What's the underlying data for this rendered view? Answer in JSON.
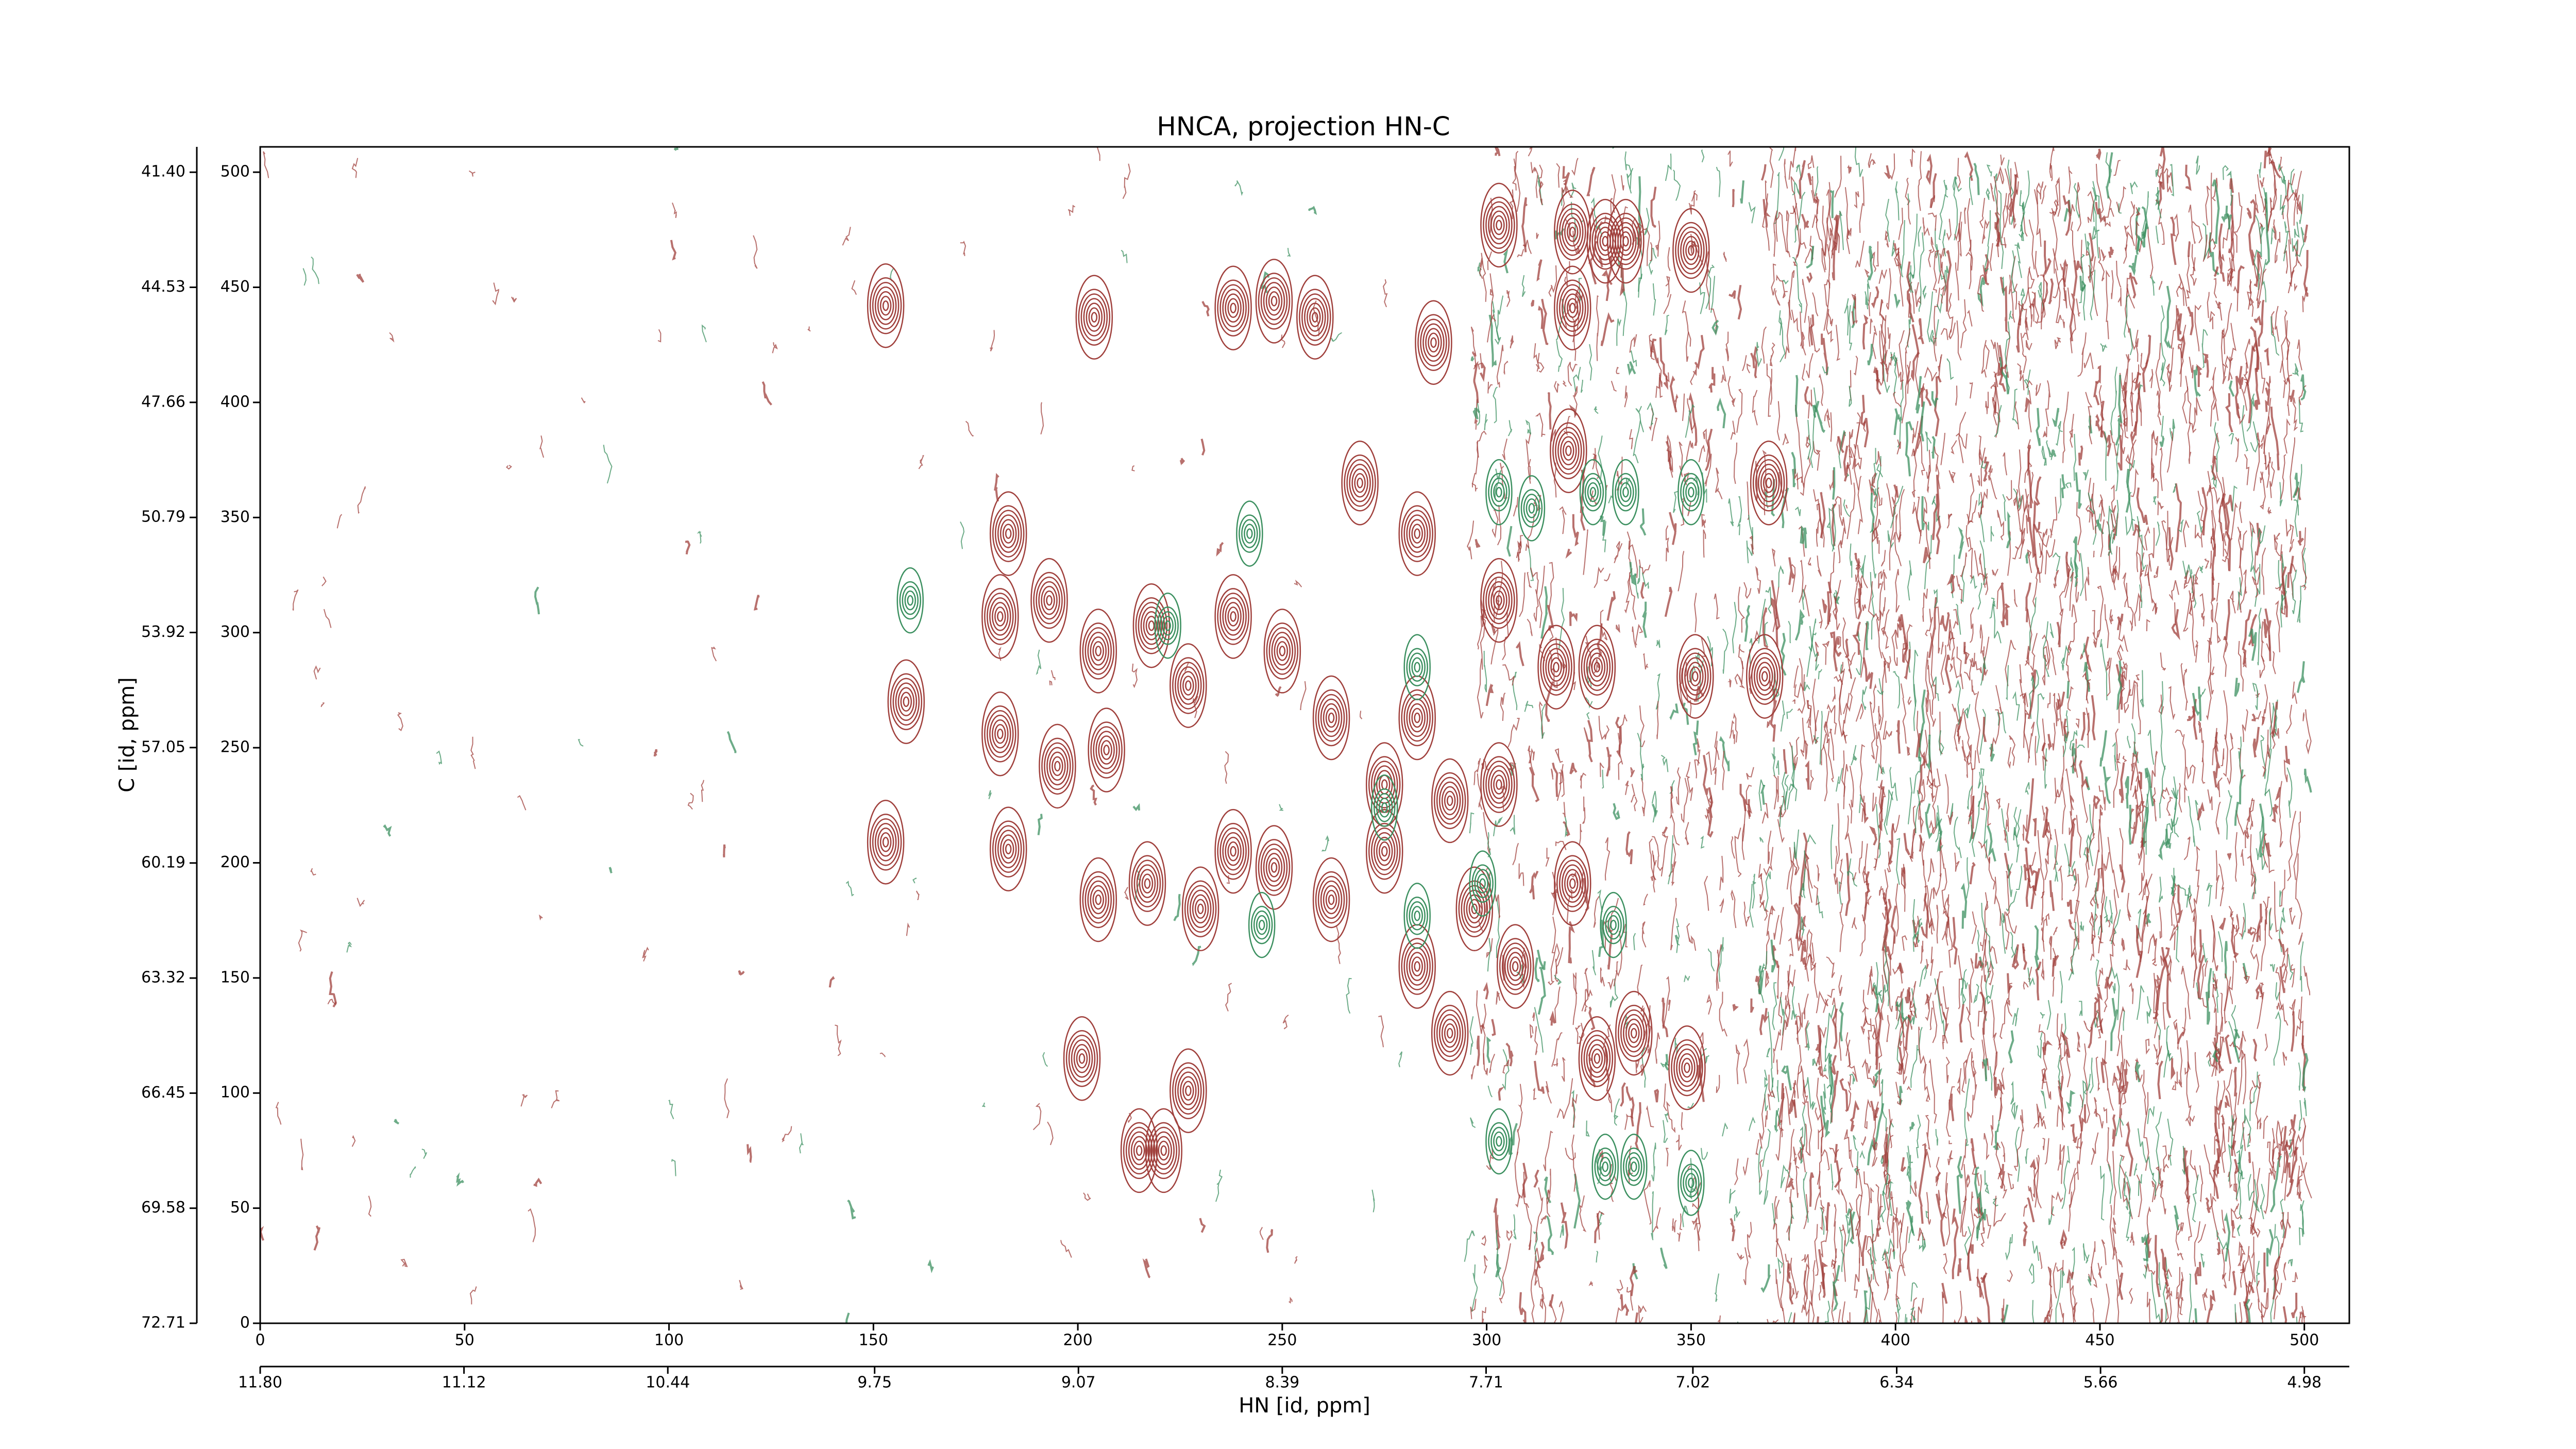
{
  "chart_data": {
    "type": "contour",
    "title": "HNCA, projection HN-C",
    "x_label": "HN [id, ppm]",
    "y_label": "C [id, ppm]",
    "xlim": [
      0,
      511
    ],
    "ylim": [
      0,
      511
    ],
    "xticks": [
      0,
      50,
      100,
      150,
      200,
      250,
      300,
      350,
      400,
      450,
      500
    ],
    "yticks": [
      0,
      50,
      100,
      150,
      200,
      250,
      300,
      350,
      400,
      450,
      500
    ],
    "x2lim": [
      11.8,
      4.83
    ],
    "x2ticks": [
      {
        "value": 11.8,
        "label": "11.80"
      },
      11.12,
      10.44,
      9.75,
      9.07,
      8.39,
      7.71,
      7.02,
      6.34,
      5.66,
      4.98
    ],
    "y2lim": [
      72.71,
      40.71
    ],
    "y2ticks": [
      72.71,
      69.58,
      66.45,
      63.32,
      60.19,
      57.05,
      53.92,
      50.79,
      47.66,
      44.53,
      {
        "value": 41.4,
        "label": "41.40"
      }
    ],
    "series": [
      {
        "color": "#a0403c",
        "x": [
          153,
          183,
          181,
          193,
          205,
          218,
          227,
          238,
          250,
          262,
          158,
          153,
          181,
          195,
          207,
          183,
          205,
          217,
          230,
          238,
          248,
          262,
          275,
          283,
          291,
          303,
          297,
          275,
          283,
          307,
          321,
          327,
          351,
          368,
          317,
          204,
          238,
          248,
          258,
          287,
          303,
          321,
          329,
          334,
          350,
          269,
          283,
          303,
          349,
          201,
          227,
          215,
          221,
          291,
          321,
          320,
          369,
          327,
          336
        ],
        "y": [
          442,
          343,
          307,
          314,
          292,
          303,
          277,
          307,
          292,
          263,
          270,
          209,
          256,
          242,
          249,
          206,
          184,
          191,
          180,
          205,
          198,
          184,
          234,
          263,
          227,
          234,
          180,
          205,
          155,
          155,
          191,
          285,
          281,
          281,
          285,
          437,
          441,
          444,
          437,
          426,
          477,
          474,
          470,
          470,
          466,
          365,
          343,
          314,
          111,
          115,
          101,
          75,
          75,
          126,
          441,
          379,
          365,
          115,
          126
        ]
      },
      {
        "color": "#3c9060",
        "x": [
          159,
          245,
          275,
          283,
          283,
          303,
          329,
          336,
          350,
          331,
          326,
          334,
          303,
          350,
          311,
          242,
          299,
          222
        ],
        "y": [
          314,
          173,
          224,
          285,
          177,
          79,
          68,
          68,
          61,
          173,
          361,
          361,
          361,
          361,
          354,
          343,
          191,
          303
        ]
      }
    ]
  }
}
